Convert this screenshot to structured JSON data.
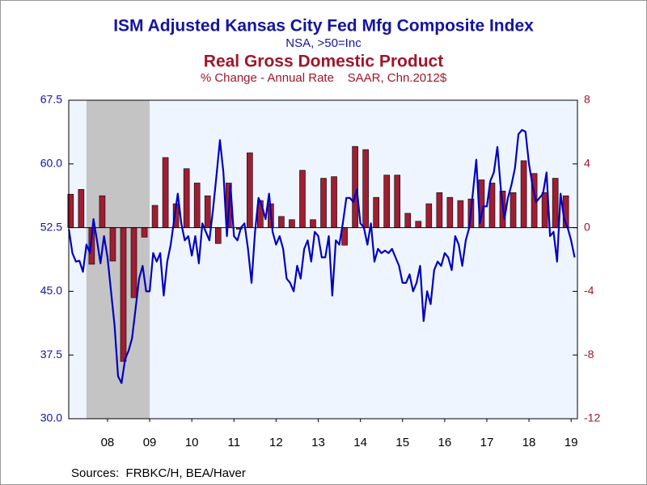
{
  "chart_data": {
    "type": "combo",
    "title": "ISM Adjusted Kansas City Fed Mfg Composite Index",
    "subtitle": "NSA, >50=Inc",
    "title2": "Real Gross Domestic Product",
    "subtitle2": "% Change - Annual Rate    SAAR, Chn.2012$",
    "source": "Sources:  FRBKC/H, BEA/Haver",
    "xlim": [
      2007.58,
      2019.65
    ],
    "xticks": [
      {
        "value": 2008.5,
        "label": "08"
      },
      {
        "value": 2009.5,
        "label": "09"
      },
      {
        "value": 2010.5,
        "label": "10"
      },
      {
        "value": 2011.5,
        "label": "11"
      },
      {
        "value": 2012.5,
        "label": "12"
      },
      {
        "value": 2013.5,
        "label": "13"
      },
      {
        "value": 2014.5,
        "label": "14"
      },
      {
        "value": 2015.5,
        "label": "15"
      },
      {
        "value": 2016.5,
        "label": "16"
      },
      {
        "value": 2017.5,
        "label": "17"
      },
      {
        "value": 2018.5,
        "label": "18"
      },
      {
        "value": 2019.5,
        "label": "19"
      }
    ],
    "ylim": [
      30,
      67.5
    ],
    "yticks": [
      {
        "value": 30,
        "label": "30.0"
      },
      37.5,
      {
        "value": 45,
        "label": "45.0"
      },
      52.5,
      {
        "value": 60,
        "label": "60.0"
      },
      67.5
    ],
    "y2lim": [
      -12,
      8
    ],
    "y2ticks": [
      -12,
      -8,
      -4,
      0,
      4,
      8
    ],
    "recession": [
      2008.0,
      2009.5
    ],
    "series": [
      {
        "type": "bar",
        "axis": "y2",
        "color": "#a01e32",
        "x": [
          2007.625,
          2007.875,
          2008.125,
          2008.375,
          2008.625,
          2008.875,
          2009.125,
          2009.375,
          2009.625,
          2009.875,
          2010.125,
          2010.375,
          2010.625,
          2010.875,
          2011.125,
          2011.375,
          2011.625,
          2011.875,
          2012.125,
          2012.375,
          2012.625,
          2012.875,
          2013.125,
          2013.375,
          2013.625,
          2013.875,
          2014.125,
          2014.375,
          2014.625,
          2014.875,
          2015.125,
          2015.375,
          2015.625,
          2015.875,
          2016.125,
          2016.375,
          2016.625,
          2016.875,
          2017.125,
          2017.375,
          2017.625,
          2017.875,
          2018.125,
          2018.375,
          2018.625,
          2018.875,
          2019.125,
          2019.375
        ],
        "values": [
          2.1,
          2.4,
          -2.3,
          2.0,
          -2.1,
          -8.4,
          -4.4,
          -0.6,
          1.4,
          4.4,
          1.5,
          3.7,
          2.8,
          2.0,
          -1.0,
          2.8,
          -0.1,
          4.7,
          1.7,
          1.5,
          0.7,
          0.5,
          3.6,
          0.5,
          3.1,
          3.2,
          -1.1,
          5.1,
          4.9,
          1.9,
          3.3,
          3.3,
          0.9,
          0.4,
          1.5,
          2.2,
          1.9,
          1.7,
          1.8,
          3.0,
          2.8,
          2.3,
          2.2,
          4.2,
          3.4,
          2.2,
          3.1,
          2.0
        ]
      },
      {
        "type": "line",
        "axis": "y",
        "color": "#0000c0",
        "x": [
          2007.583,
          2007.667,
          2007.75,
          2007.833,
          2007.917,
          2008.0,
          2008.083,
          2008.167,
          2008.25,
          2008.333,
          2008.417,
          2008.5,
          2008.583,
          2008.667,
          2008.75,
          2008.833,
          2008.917,
          2009.0,
          2009.083,
          2009.167,
          2009.25,
          2009.333,
          2009.417,
          2009.5,
          2009.583,
          2009.667,
          2009.75,
          2009.833,
          2009.917,
          2010.0,
          2010.083,
          2010.167,
          2010.25,
          2010.333,
          2010.417,
          2010.5,
          2010.583,
          2010.667,
          2010.75,
          2010.833,
          2010.917,
          2011.0,
          2011.083,
          2011.167,
          2011.25,
          2011.333,
          2011.417,
          2011.5,
          2011.583,
          2011.667,
          2011.75,
          2011.833,
          2011.917,
          2012.0,
          2012.083,
          2012.167,
          2012.25,
          2012.333,
          2012.417,
          2012.5,
          2012.583,
          2012.667,
          2012.75,
          2012.833,
          2012.917,
          2013.0,
          2013.083,
          2013.167,
          2013.25,
          2013.333,
          2013.417,
          2013.5,
          2013.583,
          2013.667,
          2013.75,
          2013.833,
          2013.917,
          2014.0,
          2014.083,
          2014.167,
          2014.25,
          2014.333,
          2014.417,
          2014.5,
          2014.583,
          2014.667,
          2014.75,
          2014.833,
          2014.917,
          2015.0,
          2015.083,
          2015.167,
          2015.25,
          2015.333,
          2015.417,
          2015.5,
          2015.583,
          2015.667,
          2015.75,
          2015.833,
          2015.917,
          2016.0,
          2016.083,
          2016.167,
          2016.25,
          2016.333,
          2016.417,
          2016.5,
          2016.583,
          2016.667,
          2016.75,
          2016.833,
          2016.917,
          2017.0,
          2017.083,
          2017.167,
          2017.25,
          2017.333,
          2017.417,
          2017.5,
          2017.583,
          2017.667,
          2017.75,
          2017.833,
          2017.917,
          2018.0,
          2018.083,
          2018.167,
          2018.25,
          2018.333,
          2018.417,
          2018.5,
          2018.583,
          2018.667,
          2018.75,
          2018.833,
          2018.917,
          2019.0,
          2019.083,
          2019.167,
          2019.25,
          2019.333,
          2019.417,
          2019.5,
          2019.583
        ],
        "values": [
          52.3,
          49.5,
          48.5,
          48.6,
          47.3,
          50.5,
          49.5,
          53.5,
          51,
          48.3,
          51.5,
          49,
          45,
          41,
          35,
          34.2,
          37,
          38,
          39.5,
          43,
          46.5,
          48,
          45,
          45,
          49.5,
          48.5,
          49.5,
          44.5,
          48.5,
          50.5,
          53.5,
          56.5,
          53,
          51,
          51.5,
          49.2,
          51.5,
          48.3,
          53,
          52,
          51,
          54.5,
          58.5,
          62.8,
          59,
          51.5,
          57.5,
          51.5,
          51,
          52.5,
          53,
          50,
          46,
          52,
          56,
          55,
          53.5,
          56.5,
          52,
          50.5,
          51.5,
          50,
          46.5,
          46,
          45,
          48,
          46.5,
          50,
          51,
          48.5,
          52,
          51.5,
          49,
          49,
          51.5,
          44.5,
          51,
          50.5,
          53,
          56,
          56,
          55.5,
          57,
          53,
          52.5,
          50.5,
          53,
          48.5,
          50,
          49.5,
          49.8,
          49.5,
          50,
          49,
          48,
          46,
          46,
          47,
          45,
          46,
          48,
          41.5,
          45,
          43.5,
          47.5,
          48.5,
          48,
          49.5,
          49,
          47.5,
          51.5,
          50.5,
          48,
          51,
          52.5,
          56.5,
          60.5,
          53,
          55,
          55,
          58,
          59,
          62,
          57,
          53.5,
          56,
          57.5,
          59.5,
          63.5,
          64,
          63.8,
          60,
          57.5,
          55.5,
          56,
          56.5,
          59,
          51.5,
          52,
          48.5,
          56.5,
          53.5,
          52.5,
          51,
          49
        ]
      }
    ]
  }
}
